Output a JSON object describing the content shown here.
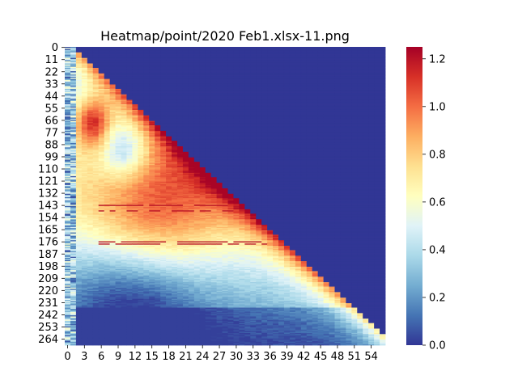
{
  "chart_data": {
    "type": "heatmap",
    "title": "Heatmap/point/2020 Feb1.xlsx-11.png",
    "xlabel": "",
    "ylabel": "",
    "n_rows": 270,
    "n_cols": 57,
    "x_tick_labels": [
      "0",
      "3",
      "6",
      "9",
      "12",
      "15",
      "18",
      "21",
      "24",
      "27",
      "30",
      "33",
      "36",
      "39",
      "42",
      "45",
      "48",
      "51",
      "54"
    ],
    "y_tick_labels": [
      "0",
      "11",
      "22",
      "33",
      "44",
      "55",
      "66",
      "77",
      "88",
      "99",
      "110",
      "121",
      "132",
      "143",
      "154",
      "165",
      "176",
      "187",
      "198",
      "209",
      "220",
      "231",
      "242",
      "253",
      "264"
    ],
    "colorbar": {
      "min": 0.0,
      "max": 1.25,
      "ticks": [
        "0.0",
        "0.2",
        "0.4",
        "0.6",
        "0.8",
        "1.0",
        "1.2"
      ],
      "colormap": "RdYlBu_r"
    },
    "fill_value": 0.0,
    "structure": "Upper-left triangle of values; cells where column > about 0.21*row are 0.0 (dark blue). Values rise to about 1.0-1.2 near rows 60-80 at columns 3-7, a second ridge peaks near rows 110-180 at columns 12-30, and values decay toward 0.1-0.3 in bottom rows; the triangular edge is high (about 0.7-1.2)."
  }
}
